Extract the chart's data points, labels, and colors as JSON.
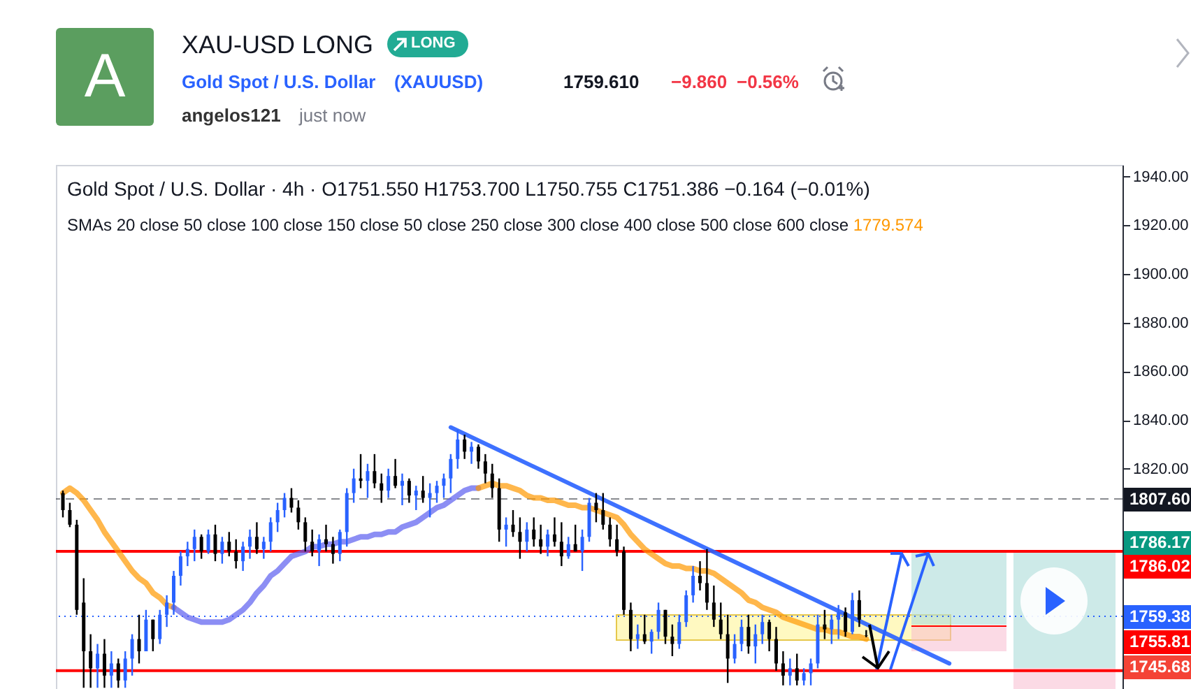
{
  "chart_data": {
    "type": "candlestick",
    "title": "Gold Spot / U.S. Dollar · 4h · O1751.550 H1753.700 L1750.755 C1751.386 −0.164 (−0.01%)",
    "subtitle": "SMAs 20 close 50 close 100 close 150 close 50 close 250 close 300 close 400 close 500 close 600 close",
    "annotations": [
      "A",
      "XAU-USD LONG",
      "LONG",
      "Gold Spot / U.S. Dollar",
      "(XAUUSD)",
      "1759.610",
      "−9.860",
      "−0.56%",
      "angelos121",
      "just now",
      "1779.574",
      "1786.17",
      "1755.81",
      "1745.68"
    ],
    "categories": [
      null,
      null,
      null,
      null,
      null,
      null,
      null,
      null,
      null,
      null,
      null,
      null,
      null,
      null,
      null,
      null,
      null,
      null,
      null,
      null,
      null,
      null,
      null,
      null,
      null,
      null,
      null,
      null,
      null,
      null,
      null,
      null,
      null,
      null,
      null,
      null,
      null,
      null,
      null,
      null,
      null,
      null,
      null,
      null,
      null,
      null,
      null,
      null,
      null,
      null,
      null,
      null,
      null,
      null,
      null,
      null,
      null,
      null,
      null,
      null,
      null,
      null,
      null,
      null,
      null,
      null,
      null,
      null,
      null,
      null,
      null,
      null,
      null,
      null,
      null,
      null,
      null,
      null,
      null,
      null,
      null,
      null,
      null,
      null,
      null,
      null,
      null,
      null,
      null,
      null,
      null,
      null,
      null,
      null,
      null,
      null,
      null,
      null,
      null,
      null,
      null,
      null,
      null,
      null,
      null,
      null,
      null,
      null,
      null,
      null,
      null,
      null,
      null,
      null,
      null,
      null,
      null,
      null,
      null,
      null,
      null,
      null,
      null,
      null,
      null,
      null,
      null,
      null,
      null,
      null,
      null,
      null,
      null,
      null,
      null,
      null,
      null,
      null,
      null,
      null,
      null,
      null,
      null,
      null,
      null,
      null,
      null,
      null,
      null,
      null,
      null,
      null,
      null
    ],
    "ohlc": [
      [
        1810,
        1811,
        1800,
        1803
      ],
      [
        1803,
        1806,
        1796,
        1797
      ],
      [
        1797,
        1799,
        1760,
        1762
      ],
      [
        1765,
        1775,
        1730,
        1745
      ],
      [
        1745,
        1752,
        1730,
        1738
      ],
      [
        1738,
        1748,
        1730,
        1744
      ],
      [
        1744,
        1750,
        1730,
        1735
      ],
      [
        1735,
        1745,
        1730,
        1740
      ],
      [
        1740,
        1742,
        1730,
        1733
      ],
      [
        1733,
        1745,
        1730,
        1742
      ],
      [
        1742,
        1752,
        1735,
        1750
      ],
      [
        1750,
        1760,
        1740,
        1745
      ],
      [
        1745,
        1762,
        1745,
        1758
      ],
      [
        1758,
        1758,
        1745,
        1750
      ],
      [
        1750,
        1762,
        1748,
        1760
      ],
      [
        1760,
        1768,
        1755,
        1765
      ],
      [
        1765,
        1778,
        1760,
        1776
      ],
      [
        1776,
        1786,
        1772,
        1784
      ],
      [
        1784,
        1790,
        1780,
        1787
      ],
      [
        1787,
        1795,
        1782,
        1792
      ],
      [
        1792,
        1793,
        1783,
        1786
      ],
      [
        1786,
        1795,
        1785,
        1793
      ],
      [
        1793,
        1797,
        1782,
        1785
      ],
      [
        1785,
        1792,
        1781,
        1790
      ],
      [
        1790,
        1794,
        1784,
        1786
      ],
      [
        1786,
        1791,
        1779,
        1782
      ],
      [
        1782,
        1790,
        1778,
        1788
      ],
      [
        1788,
        1795,
        1783,
        1792
      ],
      [
        1792,
        1798,
        1785,
        1787
      ],
      [
        1787,
        1792,
        1783,
        1790
      ],
      [
        1790,
        1800,
        1786,
        1798
      ],
      [
        1798,
        1806,
        1794,
        1803
      ],
      [
        1803,
        1810,
        1800,
        1808
      ],
      [
        1808,
        1812,
        1802,
        1804
      ],
      [
        1804,
        1807,
        1795,
        1798
      ],
      [
        1798,
        1800,
        1786,
        1790
      ],
      [
        1790,
        1795,
        1784,
        1786
      ],
      [
        1786,
        1793,
        1780,
        1791
      ],
      [
        1791,
        1797,
        1786,
        1789
      ],
      [
        1789,
        1792,
        1781,
        1785
      ],
      [
        1785,
        1795,
        1782,
        1794
      ],
      [
        1794,
        1812,
        1788,
        1810
      ],
      [
        1810,
        1820,
        1806,
        1816
      ],
      [
        1816,
        1826,
        1812,
        1815
      ],
      [
        1815,
        1822,
        1808,
        1819
      ],
      [
        1819,
        1826,
        1812,
        1814
      ],
      [
        1814,
        1818,
        1806,
        1811
      ],
      [
        1811,
        1820,
        1808,
        1817
      ],
      [
        1817,
        1824,
        1812,
        1813
      ],
      [
        1813,
        1818,
        1805,
        1815
      ],
      [
        1815,
        1816,
        1806,
        1809
      ],
      [
        1809,
        1813,
        1803,
        1811
      ],
      [
        1811,
        1817,
        1806,
        1808
      ],
      [
        1808,
        1814,
        1800,
        1810
      ],
      [
        1810,
        1815,
        1806,
        1813
      ],
      [
        1813,
        1818,
        1808,
        1816
      ],
      [
        1816,
        1826,
        1810,
        1824
      ],
      [
        1824,
        1836,
        1820,
        1832
      ],
      [
        1832,
        1834,
        1824,
        1827
      ],
      [
        1827,
        1831,
        1822,
        1829
      ],
      [
        1829,
        1830,
        1820,
        1823
      ],
      [
        1823,
        1826,
        1814,
        1818
      ],
      [
        1818,
        1822,
        1808,
        1812
      ],
      [
        1812,
        1816,
        1790,
        1795
      ],
      [
        1795,
        1800,
        1788,
        1797
      ],
      [
        1797,
        1803,
        1792,
        1794
      ],
      [
        1794,
        1800,
        1783,
        1790
      ],
      [
        1790,
        1798,
        1786,
        1795
      ],
      [
        1795,
        1800,
        1788,
        1791
      ],
      [
        1791,
        1797,
        1785,
        1788
      ],
      [
        1788,
        1795,
        1784,
        1793
      ],
      [
        1793,
        1800,
        1788,
        1790
      ],
      [
        1790,
        1798,
        1780,
        1784
      ],
      [
        1784,
        1792,
        1783,
        1789
      ],
      [
        1789,
        1797,
        1786,
        1786
      ],
      [
        1786,
        1795,
        1778,
        1792
      ],
      [
        1792,
        1808,
        1790,
        1806
      ],
      [
        1806,
        1810,
        1798,
        1803
      ],
      [
        1803,
        1810,
        1795,
        1797
      ],
      [
        1797,
        1800,
        1788,
        1791
      ],
      [
        1791,
        1797,
        1784,
        1786
      ],
      [
        1786,
        1788,
        1760,
        1762
      ],
      [
        1762,
        1765,
        1745,
        1750
      ],
      [
        1750,
        1756,
        1746,
        1752
      ],
      [
        1752,
        1760,
        1748,
        1749
      ],
      [
        1749,
        1754,
        1744,
        1753
      ],
      [
        1753,
        1765,
        1750,
        1762
      ],
      [
        1762,
        1762,
        1748,
        1751
      ],
      [
        1751,
        1756,
        1743,
        1748
      ],
      [
        1748,
        1760,
        1746,
        1757
      ],
      [
        1757,
        1770,
        1755,
        1768
      ],
      [
        1768,
        1780,
        1765,
        1776
      ],
      [
        1776,
        1782,
        1770,
        1773
      ],
      [
        1773,
        1787,
        1762,
        1765
      ],
      [
        1765,
        1772,
        1755,
        1758
      ],
      [
        1758,
        1765,
        1750,
        1752
      ],
      [
        1752,
        1760,
        1732,
        1742
      ],
      [
        1742,
        1752,
        1740,
        1748
      ],
      [
        1748,
        1758,
        1745,
        1755
      ],
      [
        1755,
        1760,
        1744,
        1747
      ],
      [
        1747,
        1756,
        1740,
        1752
      ],
      [
        1752,
        1760,
        1748,
        1757
      ],
      [
        1757,
        1758,
        1745,
        1750
      ],
      [
        1750,
        1755,
        1737,
        1740
      ],
      [
        1740,
        1745,
        1731,
        1735
      ],
      [
        1735,
        1742,
        1731,
        1738
      ],
      [
        1738,
        1744,
        1731,
        1733
      ],
      [
        1733,
        1738,
        1731,
        1736
      ],
      [
        1736,
        1742,
        1731,
        1740
      ],
      [
        1740,
        1760,
        1738,
        1756
      ],
      [
        1756,
        1762,
        1750,
        1754
      ],
      [
        1754,
        1760,
        1748,
        1758
      ],
      [
        1758,
        1764,
        1750,
        1761
      ],
      [
        1761,
        1763,
        1751,
        1753
      ],
      [
        1753,
        1769,
        1752,
        1766
      ],
      [
        1766,
        1770,
        1755,
        1758
      ],
      [
        1751.55,
        1753.7,
        1750.755,
        1751.386
      ],
      null,
      null,
      null,
      null,
      null,
      null,
      null,
      null,
      null,
      null,
      null,
      null,
      null,
      null,
      null,
      null,
      null,
      null,
      null,
      null,
      null,
      null,
      null,
      null,
      null,
      null,
      null,
      null,
      null,
      null,
      null,
      null,
      null,
      null,
      null,
      null
    ],
    "series": [
      {
        "type": "line",
        "color": "#ff9800",
        "values": [
          1810,
          1812,
          1810,
          1807,
          1803,
          1799,
          1794,
          1790,
          1786,
          1782,
          1778,
          1775,
          1773,
          1769,
          1767,
          1764,
          1763,
          null,
          null,
          null,
          null,
          null,
          null,
          null,
          null,
          null,
          null,
          null,
          null,
          null,
          null,
          null,
          null,
          null,
          null,
          null,
          null,
          null,
          null,
          null,
          null,
          null,
          null,
          null,
          null,
          null,
          null,
          null,
          null,
          null,
          null,
          null,
          null,
          null,
          null,
          null,
          null,
          null,
          null,
          null,
          null,
          null,
          null,
          null,
          null,
          null,
          null,
          null,
          null,
          null,
          null,
          null,
          null,
          null,
          null,
          null,
          null,
          null,
          null,
          null,
          null,
          null,
          null,
          null,
          null,
          null,
          null,
          null,
          null,
          null,
          null,
          null,
          null,
          null,
          null,
          null,
          null,
          null,
          null,
          null,
          null,
          null,
          null,
          null,
          null,
          null,
          null,
          null,
          null,
          null,
          null,
          null,
          null,
          null,
          null,
          null,
          null,
          null,
          null,
          null,
          null,
          null,
          null,
          null,
          null,
          null,
          null,
          null,
          null,
          null,
          null,
          null,
          null,
          null,
          null,
          null,
          null,
          null,
          null,
          null,
          null,
          null,
          null,
          null,
          null,
          null,
          null,
          null,
          null,
          null,
          null,
          null,
          null
        ]
      },
      {
        "type": "line",
        "color": "#5b5ef0",
        "values": [
          null,
          null,
          null,
          null,
          null,
          null,
          null,
          null,
          null,
          null,
          null,
          null,
          null,
          null,
          null,
          null,
          1763,
          1761,
          1759,
          1758,
          1757,
          1757,
          1757,
          1757,
          1758,
          1760,
          1762,
          1765,
          1769,
          1772,
          1776,
          1778,
          1781,
          1784,
          1785,
          1786,
          1788,
          1788,
          1789,
          1789,
          1790,
          1790,
          1791,
          1792,
          1792,
          1793,
          1793,
          1794,
          1794,
          1796,
          1797,
          1798,
          1800,
          1802,
          1804,
          1805,
          1807,
          1809,
          1811,
          1812,
          1812,
          null,
          null,
          null,
          null,
          null,
          null,
          null,
          null,
          null,
          null,
          null,
          null,
          null,
          null,
          null,
          null,
          null,
          null,
          null,
          null,
          null,
          null,
          null,
          null,
          null,
          null,
          null,
          null,
          null,
          null,
          null,
          null,
          null,
          null,
          null,
          null,
          null,
          null,
          null,
          null,
          null,
          null,
          null,
          null,
          null,
          null,
          null,
          null,
          null,
          null,
          null,
          null,
          null,
          null,
          null,
          null,
          null,
          null,
          null,
          null,
          null,
          null,
          null,
          null,
          null,
          null,
          null,
          null,
          null,
          null,
          null,
          null,
          null,
          null,
          null,
          null,
          null,
          null,
          null,
          null,
          null,
          null,
          null,
          null,
          null,
          null,
          null,
          null,
          null,
          null,
          null,
          null
        ]
      },
      {
        "type": "line",
        "color": "#ff9800",
        "values": [
          null,
          null,
          null,
          null,
          null,
          null,
          null,
          null,
          null,
          null,
          null,
          null,
          null,
          null,
          null,
          null,
          null,
          null,
          null,
          null,
          null,
          null,
          null,
          null,
          null,
          null,
          null,
          null,
          null,
          null,
          null,
          null,
          null,
          null,
          null,
          null,
          null,
          null,
          null,
          null,
          null,
          null,
          null,
          null,
          null,
          null,
          null,
          null,
          null,
          null,
          null,
          null,
          null,
          null,
          null,
          null,
          null,
          null,
          null,
          null,
          1812,
          1813,
          1814,
          1813,
          1813,
          1812,
          1811,
          1809,
          1808,
          1808,
          1807,
          1807,
          1806,
          1805,
          1805,
          1804,
          1804,
          1803,
          1802,
          1801,
          1800,
          1797,
          1793,
          1790,
          1787,
          1785,
          1783,
          1781,
          1780,
          1780,
          1779,
          1779,
          1778,
          1778,
          1777,
          1775,
          1773,
          1771,
          1769,
          1766,
          1765,
          1763,
          1762,
          1761,
          1759,
          1758,
          1757,
          1756,
          1755,
          1754,
          1754,
          1753,
          1753,
          1752,
          1751,
          1751,
          1750,
          null,
          null,
          null,
          null,
          null,
          null,
          null,
          null,
          null,
          null,
          null,
          null,
          null,
          null,
          null,
          null,
          null,
          null,
          null,
          null,
          null,
          null,
          null,
          null,
          null,
          null,
          null,
          null,
          null,
          null,
          null,
          null,
          null,
          null,
          null,
          null
        ]
      },
      {
        "type": "line",
        "color": "#2962ff",
        "values": [
          null,
          null,
          null,
          null,
          null,
          null,
          null,
          null,
          null,
          null,
          null,
          null,
          null,
          null,
          null,
          null,
          null,
          null,
          null,
          null,
          null,
          null,
          null,
          null,
          null,
          null,
          null,
          null,
          null,
          null,
          null,
          null,
          null,
          null,
          null,
          null,
          null,
          null,
          null,
          null,
          null,
          null,
          null,
          null,
          null,
          null,
          null,
          null,
          null,
          null,
          null,
          null,
          null,
          null,
          null,
          null,
          1837,
          null,
          null,
          null,
          null,
          null,
          null,
          null,
          null,
          null,
          null,
          null,
          null,
          null,
          null,
          null,
          null,
          null,
          null,
          null,
          null,
          null,
          null,
          null,
          null,
          null,
          null,
          null,
          null,
          null,
          null,
          null,
          null,
          null,
          null,
          null,
          null,
          null,
          null,
          null,
          null,
          null,
          null,
          null,
          null,
          null,
          null,
          null,
          null,
          null,
          null,
          null,
          null,
          null,
          null,
          null,
          null,
          null,
          null,
          null,
          null,
          null,
          null,
          null,
          null,
          null,
          null,
          null,
          null,
          null,
          null,
          null,
          1740,
          null,
          null,
          null,
          null,
          null,
          null,
          null,
          null,
          null,
          null,
          null,
          null,
          null,
          null,
          null,
          null,
          null,
          null,
          null,
          null,
          null,
          null,
          null,
          null
        ]
      }
    ],
    "ref_lines": [
      {
        "axis": "y",
        "value": 1807.6,
        "label": "1807.60",
        "color": "#131722",
        "line_style": "dashed"
      },
      {
        "axis": "y",
        "value": 1786.02,
        "label": "1786.02",
        "color": "#ff0000",
        "line_style": "solid"
      },
      {
        "axis": "y",
        "value": 1759.38,
        "label": "1759.38",
        "color": "#2962ff",
        "line_style": "dotted"
      },
      {
        "axis": "y",
        "value": 1737,
        "color": "#ff0000",
        "line_style": "solid"
      }
    ],
    "ylim": [
      1729.5,
      1944.8
    ],
    "yticks": [
      {
        "value": 1820,
        "label": "1820.00"
      },
      {
        "value": 1840,
        "label": "1840.00"
      },
      {
        "value": 1860,
        "label": "1860.00"
      },
      {
        "value": 1880,
        "label": "1880.00"
      },
      {
        "value": 1900,
        "label": "1900.00"
      },
      {
        "value": 1920,
        "label": "1920.00"
      },
      {
        "value": 1940,
        "label": "1940.00"
      }
    ],
    "tick_labels": "y",
    "grid": false
  }
}
